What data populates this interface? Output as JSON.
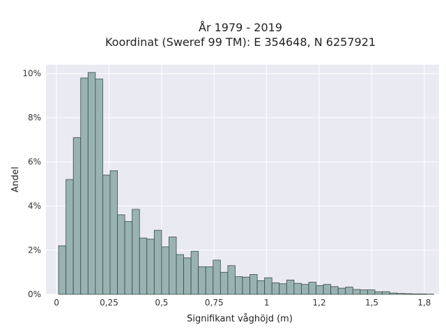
{
  "chart_data": {
    "type": "bar",
    "title": "År 1979 - 2019",
    "subtitle": "Koordinat (Sweref 99 TM): E 354648, N 6257921",
    "xlabel": "Signifikant våghöjd (m)",
    "ylabel": "Andel",
    "bin_width": 0.035,
    "x_start": 0.01,
    "xlim": [
      -0.05,
      1.82
    ],
    "ylim": [
      0,
      10.4
    ],
    "xticks": [
      {
        "value": 0,
        "label": "0"
      },
      {
        "value": 0.25,
        "label": "0,25"
      },
      {
        "value": 0.5,
        "label": "0,5"
      },
      {
        "value": 0.75,
        "label": "0,75"
      },
      {
        "value": 1,
        "label": "1"
      },
      {
        "value": 1.25,
        "label": "1,2"
      },
      {
        "value": 1.5,
        "label": "1,5"
      },
      {
        "value": 1.75,
        "label": "1,8"
      }
    ],
    "yticks": [
      {
        "value": 0,
        "label": "0%"
      },
      {
        "value": 2,
        "label": "2%"
      },
      {
        "value": 4,
        "label": "4%"
      },
      {
        "value": 6,
        "label": "6%"
      },
      {
        "value": 8,
        "label": "8%"
      },
      {
        "value": 10,
        "label": "10%"
      }
    ],
    "values": [
      2.2,
      5.2,
      7.1,
      9.8,
      10.05,
      9.75,
      5.4,
      5.6,
      3.6,
      3.3,
      3.85,
      2.55,
      2.5,
      2.9,
      2.15,
      2.6,
      1.8,
      1.65,
      1.95,
      1.25,
      1.25,
      1.55,
      1.0,
      1.3,
      0.8,
      0.78,
      0.9,
      0.62,
      0.75,
      0.52,
      0.48,
      0.65,
      0.5,
      0.45,
      0.55,
      0.4,
      0.45,
      0.35,
      0.28,
      0.33,
      0.22,
      0.2,
      0.2,
      0.12,
      0.12,
      0.06,
      0.04,
      0.03,
      0.02,
      0.02,
      0.01
    ],
    "colors": {
      "bar_fill": "#98b3b2",
      "bar_stroke": "#3a4a48",
      "plot_bg": "#eaeaf2",
      "grid": "#ffffff"
    },
    "grid": true
  }
}
